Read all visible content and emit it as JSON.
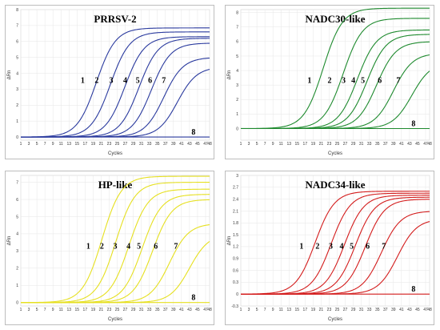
{
  "figure": {
    "colors": {
      "panel_bg": "#ffffff",
      "grid": "#e6e6e6",
      "frame": "#bdbdbd"
    }
  },
  "chart_data": [
    {
      "type": "line",
      "title": "PRRSV-2",
      "xlabel": "Cycles",
      "ylabel": "ΔRn",
      "color": "#2a3a9e",
      "xlim": [
        1,
        48
      ],
      "ylim": [
        -0.2,
        8.0
      ],
      "y_ticks": [
        0,
        1,
        2,
        3,
        4,
        5,
        6,
        7,
        8
      ],
      "x_ticks": [
        1,
        3,
        5,
        7,
        9,
        11,
        13,
        15,
        17,
        19,
        21,
        23,
        25,
        27,
        29,
        31,
        33,
        35,
        37,
        39,
        41,
        43,
        45,
        47,
        48
      ],
      "grid": true,
      "series": [
        {
          "label": "1",
          "ct": 15.8,
          "plateau": 6.85,
          "baseline": 0
        },
        {
          "label": "2",
          "ct": 19.3,
          "plateau": 6.6,
          "baseline": 0
        },
        {
          "label": "3",
          "ct": 22.9,
          "plateau": 6.3,
          "baseline": 0
        },
        {
          "label": "4",
          "ct": 26.4,
          "plateau": 6.2,
          "baseline": 0
        },
        {
          "label": "5",
          "ct": 29.5,
          "plateau": 5.9,
          "baseline": 0
        },
        {
          "label": "6",
          "ct": 32.6,
          "plateau": 5.0,
          "baseline": 0
        },
        {
          "label": "7",
          "ct": 36.0,
          "plateau": 4.4,
          "baseline": 0
        },
        {
          "label": "8",
          "ct": null,
          "plateau": 0,
          "baseline": 0
        }
      ]
    },
    {
      "type": "line",
      "title": "NADC30-like",
      "xlabel": "Cycles",
      "ylabel": "ΔRn",
      "color": "#1e8a2e",
      "xlim": [
        1,
        48
      ],
      "ylim": [
        -0.8,
        8.2
      ],
      "y_ticks": [
        -1,
        0,
        1,
        2,
        3,
        4,
        5,
        6,
        7,
        8
      ],
      "x_ticks": [
        1,
        3,
        5,
        7,
        9,
        11,
        13,
        15,
        17,
        19,
        21,
        23,
        25,
        27,
        29,
        31,
        33,
        35,
        37,
        39,
        41,
        43,
        45,
        47,
        48
      ],
      "grid": true,
      "series": [
        {
          "label": "1",
          "ct": 17.5,
          "plateau": 8.3,
          "baseline": 0
        },
        {
          "label": "2",
          "ct": 22.5,
          "plateau": 7.6,
          "baseline": 0
        },
        {
          "label": "3",
          "ct": 26.0,
          "plateau": 6.8,
          "baseline": 0
        },
        {
          "label": "4",
          "ct": 28.4,
          "plateau": 6.5,
          "baseline": 0
        },
        {
          "label": "5",
          "ct": 30.8,
          "plateau": 6.0,
          "baseline": 0
        },
        {
          "label": "6",
          "ct": 35.0,
          "plateau": 5.2,
          "baseline": 0
        },
        {
          "label": "7",
          "ct": 39.6,
          "plateau": 4.6,
          "baseline": 0
        },
        {
          "label": "8",
          "ct": null,
          "plateau": 0,
          "baseline": 0
        }
      ]
    },
    {
      "type": "line",
      "title": "HP-like",
      "xlabel": "Cycles",
      "ylabel": "ΔRn",
      "color": "#e6e020",
      "xlim": [
        1,
        48
      ],
      "ylim": [
        -0.2,
        7.4
      ],
      "y_ticks": [
        0,
        1,
        2,
        3,
        4,
        5,
        6,
        7
      ],
      "x_ticks": [
        1,
        3,
        5,
        7,
        9,
        11,
        13,
        15,
        17,
        19,
        21,
        23,
        25,
        27,
        29,
        31,
        33,
        35,
        37,
        39,
        41,
        43,
        45,
        47,
        48
      ],
      "grid": true,
      "series": [
        {
          "label": "1",
          "ct": 17.2,
          "plateau": 7.35,
          "baseline": 0
        },
        {
          "label": "2",
          "ct": 20.6,
          "plateau": 7.0,
          "baseline": 0
        },
        {
          "label": "3",
          "ct": 23.9,
          "plateau": 6.6,
          "baseline": 0
        },
        {
          "label": "4",
          "ct": 27.2,
          "plateau": 6.3,
          "baseline": 0
        },
        {
          "label": "5",
          "ct": 29.8,
          "plateau": 6.0,
          "baseline": 0
        },
        {
          "label": "6",
          "ct": 34.0,
          "plateau": 4.6,
          "baseline": 0
        },
        {
          "label": "7",
          "ct": 39.0,
          "plateau": 4.0,
          "baseline": 0
        },
        {
          "label": "8",
          "ct": null,
          "plateau": 0,
          "baseline": 0
        }
      ]
    },
    {
      "type": "line",
      "title": "NADC34-like",
      "xlabel": "Cycles",
      "ylabel": "ΔRn",
      "color": "#d31c1c",
      "xlim": [
        1,
        48
      ],
      "ylim": [
        -0.3,
        3.0
      ],
      "y_ticks": [
        -0.3,
        0,
        0.3,
        0.6,
        0.9,
        1.2,
        1.5,
        1.8,
        2.1,
        2.4,
        2.7,
        3
      ],
      "x_ticks": [
        1,
        3,
        5,
        7,
        9,
        11,
        13,
        15,
        17,
        19,
        21,
        23,
        25,
        27,
        29,
        31,
        33,
        35,
        37,
        39,
        41,
        43,
        45,
        47,
        48
      ],
      "grid": true,
      "series": [
        {
          "label": "1",
          "ct": 15.5,
          "plateau": 2.6,
          "baseline": 0
        },
        {
          "label": "2",
          "ct": 19.5,
          "plateau": 2.55,
          "baseline": 0
        },
        {
          "label": "3",
          "ct": 22.8,
          "plateau": 2.5,
          "baseline": 0
        },
        {
          "label": "4",
          "ct": 25.5,
          "plateau": 2.45,
          "baseline": 0
        },
        {
          "label": "5",
          "ct": 28.0,
          "plateau": 2.4,
          "baseline": 0
        },
        {
          "label": "6",
          "ct": 32.0,
          "plateau": 2.1,
          "baseline": 0
        },
        {
          "label": "7",
          "ct": 36.0,
          "plateau": 1.9,
          "baseline": 0
        },
        {
          "label": "8",
          "ct": null,
          "plateau": 0,
          "baseline": 0
        }
      ]
    }
  ]
}
